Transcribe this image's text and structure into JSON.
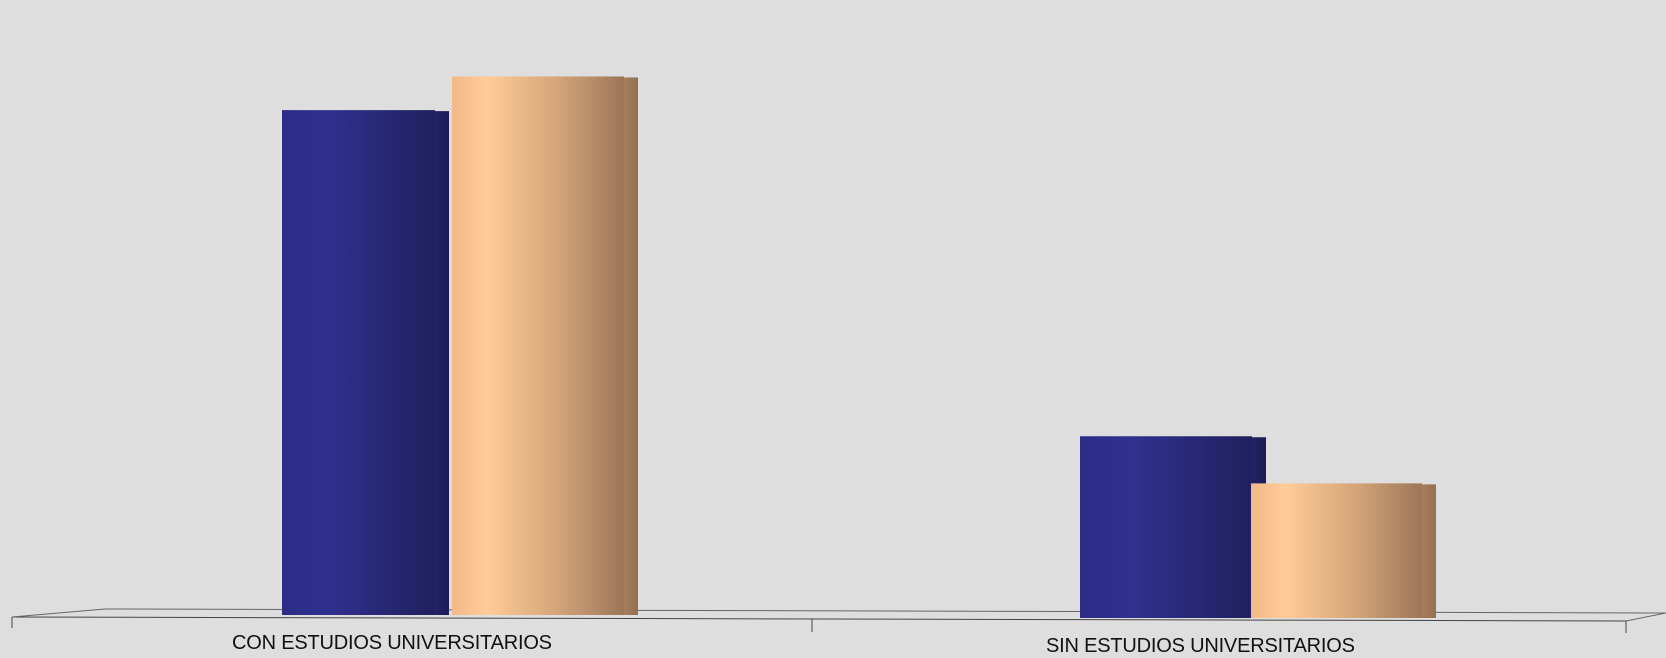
{
  "chart_data": {
    "type": "bar",
    "categories": [
      "CON ESTUDIOS UNIVERSITARIOS",
      "SIN ESTUDIOS UNIVERSITARIOS"
    ],
    "series": [
      {
        "values": [
          75,
          27
        ],
        "color": "#2e2e8c"
      },
      {
        "values": [
          80,
          20
        ],
        "color": "#f0b888"
      }
    ],
    "ylim": [
      0,
      82
    ],
    "grid": false,
    "legend": "none",
    "style": "3d-clustered-bar"
  }
}
